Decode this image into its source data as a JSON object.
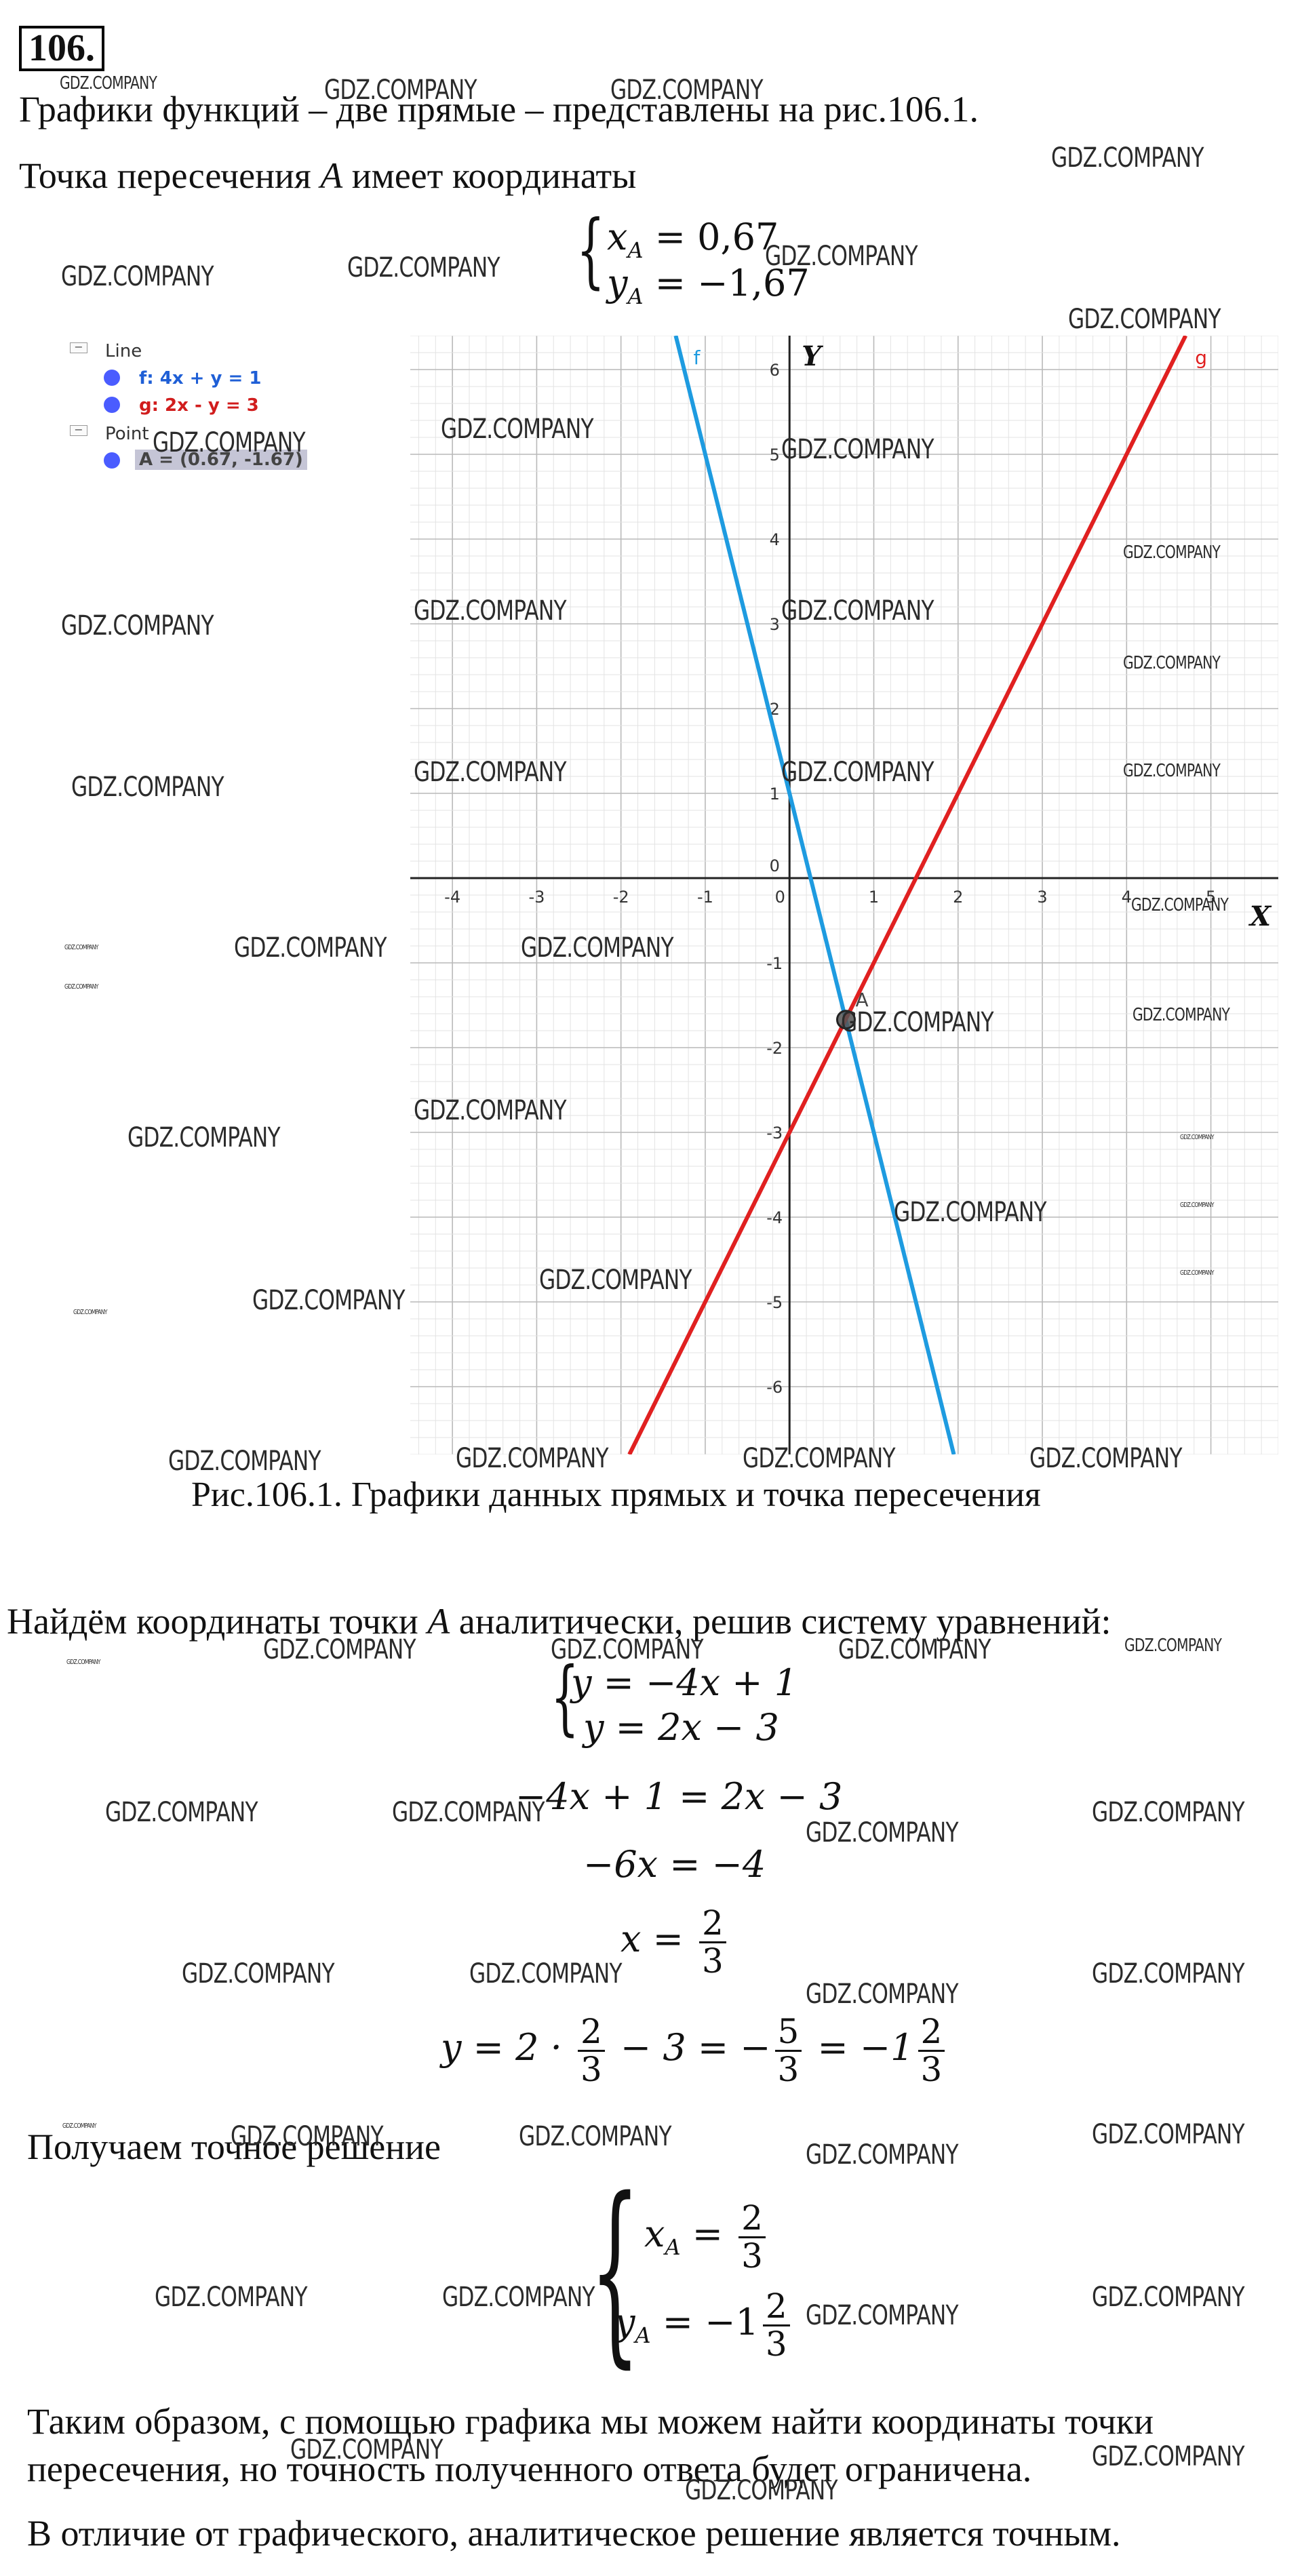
{
  "problem_number": "106.",
  "intro": {
    "line1": "Графики функций – две прямые – представлены на рис.106.1.",
    "line2_before": "Точка пересечения ",
    "line2_var": "A",
    "line2_after": " имеет координаты"
  },
  "approx": {
    "xA": "x",
    "xA_sub": "A",
    "xA_val": " = 0,67",
    "yA": "y",
    "yA_sub": "A",
    "yA_val": " = −1,67"
  },
  "legend": {
    "header_line": "Line",
    "f_label": "f: 4x + y = 1",
    "g_label": "g: 2x - y = 3",
    "header_point": "Point",
    "a_label": "A = (0.67, -1.67)"
  },
  "chart_data": {
    "type": "line",
    "xlim": [
      -4.5,
      5.8
    ],
    "ylim": [
      -6.8,
      6.4
    ],
    "x_ticks": [
      -4,
      -3,
      -2,
      -1,
      0,
      1,
      2,
      3,
      4,
      5
    ],
    "y_ticks": [
      -6,
      -5,
      -4,
      -3,
      -2,
      -1,
      0,
      1,
      2,
      3,
      4,
      5,
      6
    ],
    "x_axis_label": "X",
    "y_axis_label": "Y",
    "grid": true,
    "series": [
      {
        "name": "f",
        "equation": "4x + y = 1",
        "slope": -4,
        "intercept": 1,
        "color": "#1e9be0"
      },
      {
        "name": "g",
        "equation": "2x - y = 3",
        "slope": 2,
        "intercept": -3,
        "color": "#e02020"
      }
    ],
    "points": [
      {
        "name": "A",
        "x": 0.67,
        "y": -1.67
      }
    ]
  },
  "caption": "Рис.106.1. Графики данных прямых и точка пересечения",
  "analytic_intro": {
    "before": "Найдём координаты точки ",
    "var": "A",
    "after": " аналитически, решив систему уравнений:"
  },
  "system": {
    "eq1": "y = −4x + 1",
    "eq2": "y = 2x − 3"
  },
  "steps": {
    "s1": "−4x + 1 = 2x − 3",
    "s2": "−6x = −4",
    "s3_lhs": "x = ",
    "frac_2_3_num": "2",
    "frac_2_3_den": "3",
    "s4_lhs": "y = 2 · ",
    "s4_mid": " − 3 = −",
    "frac_5_3_num": "5",
    "frac_5_3_den": "3",
    "s4_eq": " = −1",
    "frac_2_3b_num": "2",
    "frac_2_3b_den": "3"
  },
  "exact_intro": "Получаем точное решение",
  "exact": {
    "xA": "x",
    "xA_sub": "A",
    "xA_eq": " = ",
    "xA_num": "2",
    "xA_den": "3",
    "yA": "y",
    "yA_sub": "A",
    "yA_eq": " = −1",
    "yA_num": "2",
    "yA_den": "3"
  },
  "conclusion": {
    "line1": "Таким образом, с помощью графика мы можем найти координаты точки",
    "line2": "пересечения, но точность полученного ответа будет ограничена.",
    "line3": "В отличие от графического, аналитическое решение является точным."
  },
  "watermark": "GDZ.COMPANY"
}
